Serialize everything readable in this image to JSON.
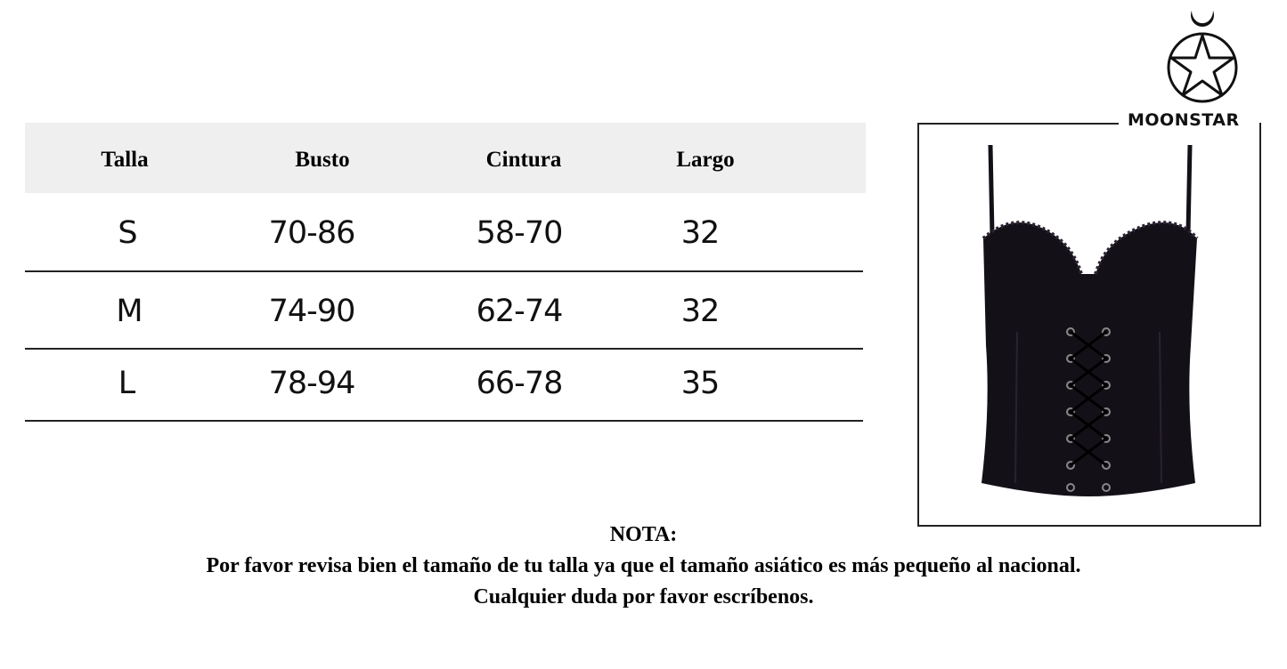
{
  "size_table": {
    "headers": [
      "Talla",
      "Busto",
      "Cintura",
      "Largo"
    ],
    "rows": [
      [
        "S",
        "70-86",
        "58-70",
        "32"
      ],
      [
        "M",
        "74-90",
        "62-74",
        "32"
      ],
      [
        "L",
        "78-94",
        "66-78",
        "35"
      ]
    ]
  },
  "brand": {
    "name": "MOONSTAR",
    "logo_icon": "moon-star-circle-logo"
  },
  "product_image": {
    "icon": "black-lace-up-corset-top"
  },
  "note": {
    "title": "NOTA:",
    "line1": "Por favor revisa bien el tamaño de tu talla ya que el tamaño asiático es más pequeño al nacional.",
    "line2": "Cualquier duda por favor escríbenos."
  },
  "colors": {
    "header_bg": "#efefef",
    "text": "#000000",
    "garment": "#141018"
  }
}
